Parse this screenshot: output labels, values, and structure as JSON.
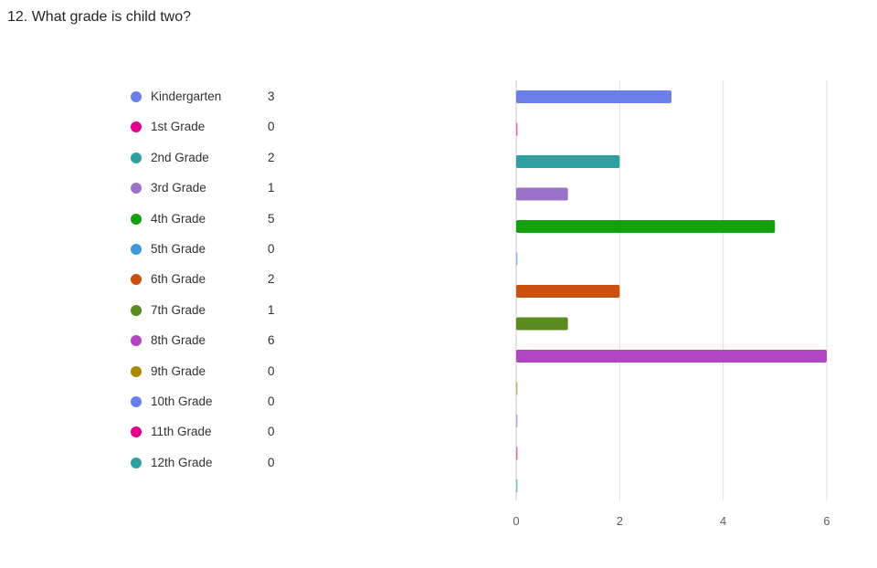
{
  "question": {
    "title": "12. What grade is child two?"
  },
  "chart_data": {
    "type": "bar",
    "orientation": "horizontal",
    "categories": [
      "Kindergarten",
      "1st Grade",
      "2nd Grade",
      "3rd Grade",
      "4th Grade",
      "5th Grade",
      "6th Grade",
      "7th Grade",
      "8th Grade",
      "9th Grade",
      "10th Grade",
      "11th Grade",
      "12th Grade"
    ],
    "values": [
      3,
      0,
      2,
      1,
      5,
      0,
      2,
      1,
      6,
      0,
      0,
      0,
      0
    ],
    "counts_text": [
      "3",
      "0",
      "2",
      "1",
      "5",
      "0",
      "2",
      "1",
      "6",
      "0",
      "0",
      "0",
      "0"
    ],
    "colors": [
      "#6b7fe8",
      "#e3008c",
      "#2ea0a0",
      "#9a73c8",
      "#13a10e",
      "#3e97d9",
      "#ca5010",
      "#5b8a1f",
      "#b146c2",
      "#a88a00",
      "#6b7fe8",
      "#e3008c",
      "#2ea0a0"
    ],
    "xlim": [
      0,
      6
    ],
    "xticks": [
      0,
      2,
      4,
      6
    ],
    "xtick_labels": [
      "0",
      "2",
      "4",
      "6"
    ],
    "grid": true,
    "legend_placement": "left"
  }
}
